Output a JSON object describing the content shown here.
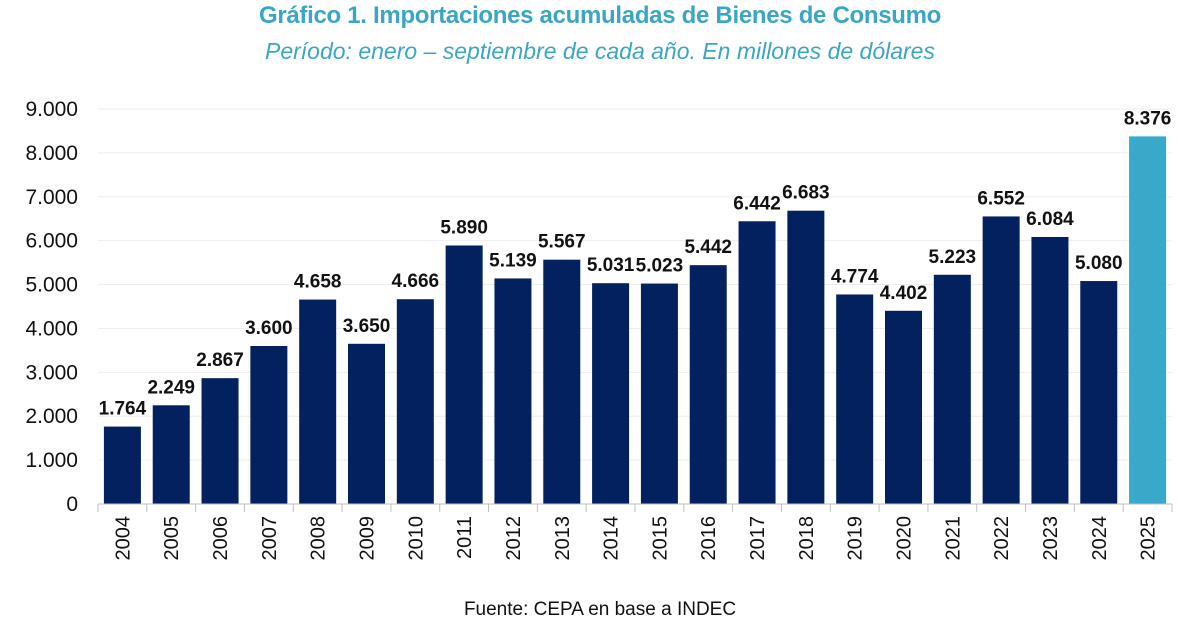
{
  "header": {
    "title": "Gráfico 1. Importaciones acumuladas de Bienes de Consumo",
    "subtitle": "Período: enero – septiembre de cada año. En millones de dólares"
  },
  "footer": {
    "source": "Fuente: CEPA en base a INDEC"
  },
  "colors": {
    "bar_default": "#03215f",
    "bar_highlight": "#38a9c9",
    "gridline": "#eeeeee",
    "title": "#3aa6c4"
  },
  "chart_data": {
    "type": "bar",
    "title": "Gráfico 1. Importaciones acumuladas de Bienes de Consumo",
    "subtitle": "Período: enero – septiembre de cada año. En millones de dólares",
    "xlabel": "",
    "ylabel": "",
    "categories": [
      "2004",
      "2005",
      "2006",
      "2007",
      "2008",
      "2009",
      "2010",
      "2011",
      "2012",
      "2013",
      "2014",
      "2015",
      "2016",
      "2017",
      "2018",
      "2019",
      "2020",
      "2021",
      "2022",
      "2023",
      "2024",
      "2025"
    ],
    "values": [
      1764,
      2249,
      2867,
      3600,
      4658,
      3650,
      4666,
      5890,
      5139,
      5567,
      5031,
      5023,
      5442,
      6442,
      6683,
      4774,
      4402,
      5223,
      6552,
      6084,
      5080,
      8376
    ],
    "value_labels": [
      "1.764",
      "2.249",
      "2.867",
      "3.600",
      "4.658",
      "3.650",
      "4.666",
      "5.890",
      "5.139",
      "5.567",
      "5.031",
      "5.023",
      "5.442",
      "6.442",
      "6.683",
      "4.774",
      "4.402",
      "5.223",
      "6.552",
      "6.084",
      "5.080",
      "8.376"
    ],
    "highlight_category": "2025",
    "ylim": [
      0,
      9000
    ],
    "yticks": [
      0,
      1000,
      2000,
      3000,
      4000,
      5000,
      6000,
      7000,
      8000,
      9000
    ],
    "ytick_labels": [
      "0",
      "1.000",
      "2.000",
      "3.000",
      "4.000",
      "5.000",
      "6.000",
      "7.000",
      "8.000",
      "9.000"
    ],
    "grid": true,
    "legend": "none"
  }
}
